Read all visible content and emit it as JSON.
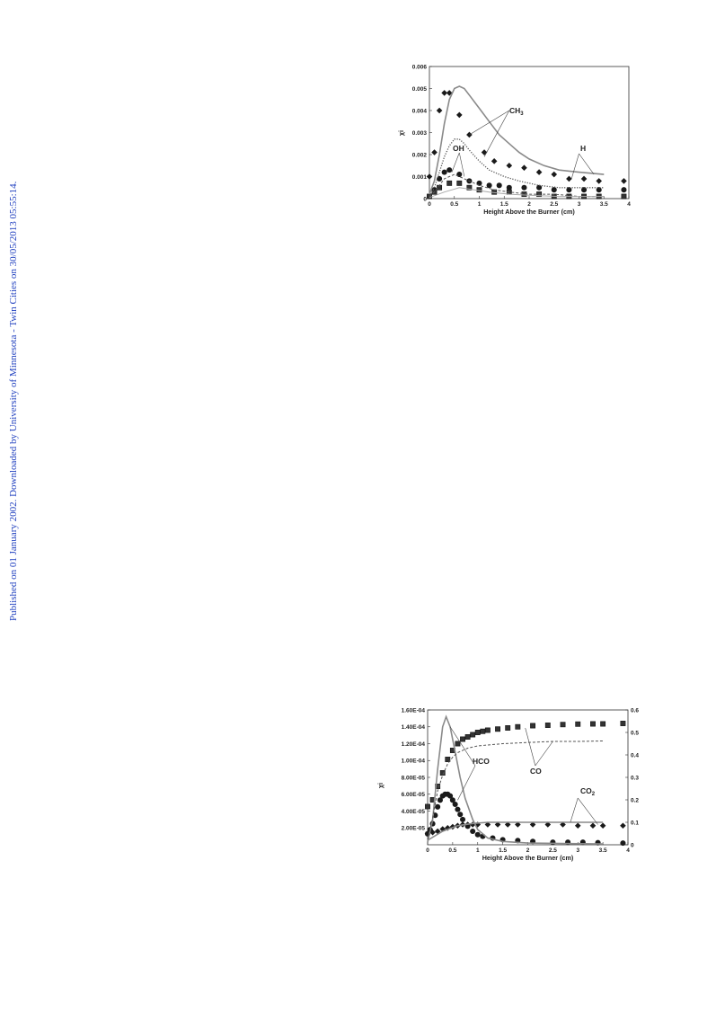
{
  "side_note": "Published on 01 January 2002. Downloaded by University of Minnesota - Twin Cities on 30/05/2013 05:55:14.",
  "chart_data": [
    {
      "type": "scatter",
      "xlabel": "Height Above the Burner (cm)",
      "ylabel": "χi",
      "xlim": [
        0,
        4
      ],
      "ylim": [
        0,
        0.006
      ],
      "x_ticks": [
        "0",
        "0.5",
        "1",
        "1.5",
        "2",
        "2.5",
        "3",
        "3.5",
        "4"
      ],
      "y_ticks": [
        "0",
        "0.001",
        "0.002",
        "0.003",
        "0.004",
        "0.005",
        "0.006"
      ],
      "annotations": [
        "CH3",
        "OH",
        "H"
      ],
      "series": [
        {
          "marker": "diamond",
          "points": [
            [
              0.0,
              0.001
            ],
            [
              0.1,
              0.0021
            ],
            [
              0.2,
              0.004
            ],
            [
              0.3,
              0.0048
            ],
            [
              0.4,
              0.0048
            ],
            [
              0.6,
              0.0038
            ],
            [
              0.8,
              0.0029
            ],
            [
              1.1,
              0.0021
            ],
            [
              1.3,
              0.0017
            ],
            [
              1.6,
              0.0015
            ],
            [
              1.9,
              0.0014
            ],
            [
              2.2,
              0.0012
            ],
            [
              2.5,
              0.0011
            ],
            [
              2.8,
              0.0009
            ],
            [
              3.1,
              0.0009
            ],
            [
              3.4,
              0.0008
            ],
            [
              3.9,
              0.0008
            ]
          ]
        },
        {
          "marker": "circle",
          "points": [
            [
              0.0,
              0.0001
            ],
            [
              0.1,
              0.0004
            ],
            [
              0.2,
              0.0009
            ],
            [
              0.3,
              0.0012
            ],
            [
              0.4,
              0.0013
            ],
            [
              0.6,
              0.0011
            ],
            [
              0.8,
              0.0008
            ],
            [
              1.0,
              0.0007
            ],
            [
              1.2,
              0.0006
            ],
            [
              1.4,
              0.0006
            ],
            [
              1.6,
              0.0005
            ],
            [
              1.9,
              0.0005
            ],
            [
              2.2,
              0.0005
            ],
            [
              2.5,
              0.0004
            ],
            [
              2.8,
              0.0004
            ],
            [
              3.1,
              0.0004
            ],
            [
              3.4,
              0.0004
            ],
            [
              3.9,
              0.0004
            ]
          ]
        },
        {
          "marker": "square",
          "points": [
            [
              0.0,
              0.0001
            ],
            [
              0.1,
              0.0003
            ],
            [
              0.2,
              0.0005
            ],
            [
              0.4,
              0.0007
            ],
            [
              0.6,
              0.0007
            ],
            [
              0.8,
              0.0005
            ],
            [
              1.0,
              0.0004
            ],
            [
              1.3,
              0.0003
            ],
            [
              1.6,
              0.0003
            ],
            [
              1.9,
              0.0002
            ],
            [
              2.2,
              0.0002
            ],
            [
              2.5,
              0.0001
            ],
            [
              2.8,
              0.0001
            ],
            [
              3.1,
              0.0001
            ],
            [
              3.4,
              0.0001
            ],
            [
              3.9,
              0.0001
            ]
          ]
        },
        {
          "line": "solid",
          "points": [
            [
              0.0,
              0.0002
            ],
            [
              0.1,
              0.0008
            ],
            [
              0.2,
              0.002
            ],
            [
              0.3,
              0.0034
            ],
            [
              0.4,
              0.0045
            ],
            [
              0.5,
              0.005
            ],
            [
              0.6,
              0.0051
            ],
            [
              0.7,
              0.005
            ],
            [
              0.8,
              0.0047
            ],
            [
              1.0,
              0.0041
            ],
            [
              1.2,
              0.0035
            ],
            [
              1.4,
              0.0029
            ],
            [
              1.6,
              0.0025
            ],
            [
              1.8,
              0.0021
            ],
            [
              2.0,
              0.0018
            ],
            [
              2.3,
              0.0015
            ],
            [
              2.6,
              0.0013
            ],
            [
              3.0,
              0.0012
            ],
            [
              3.5,
              0.0011
            ]
          ]
        },
        {
          "line": "dotted",
          "points": [
            [
              0.0,
              0.0001
            ],
            [
              0.1,
              0.0005
            ],
            [
              0.2,
              0.0012
            ],
            [
              0.3,
              0.0019
            ],
            [
              0.4,
              0.0024
            ],
            [
              0.5,
              0.0027
            ],
            [
              0.6,
              0.0027
            ],
            [
              0.7,
              0.0025
            ],
            [
              0.8,
              0.0022
            ],
            [
              1.0,
              0.0017
            ],
            [
              1.2,
              0.0013
            ],
            [
              1.5,
              0.001
            ],
            [
              1.8,
              0.0008
            ],
            [
              2.2,
              0.0006
            ],
            [
              2.6,
              0.0005
            ],
            [
              3.0,
              0.0005
            ],
            [
              3.5,
              0.0005
            ]
          ]
        },
        {
          "line": "dashed",
          "points": [
            [
              0.0,
              0.0001
            ],
            [
              0.1,
              0.0003
            ],
            [
              0.2,
              0.0006
            ],
            [
              0.3,
              0.0009
            ],
            [
              0.4,
              0.001
            ],
            [
              0.5,
              0.0011
            ],
            [
              0.6,
              0.001
            ],
            [
              0.8,
              0.0008
            ],
            [
              1.0,
              0.0006
            ],
            [
              1.3,
              0.0004
            ],
            [
              1.6,
              0.0003
            ],
            [
              2.0,
              0.0002
            ],
            [
              2.5,
              0.0002
            ],
            [
              3.0,
              0.0001
            ],
            [
              3.5,
              0.0001
            ]
          ]
        },
        {
          "line": "solid-light",
          "points": [
            [
              0.0,
              5e-05
            ],
            [
              0.3,
              0.0003
            ],
            [
              0.6,
              0.0005
            ],
            [
              0.9,
              0.0004
            ],
            [
              1.2,
              0.0003
            ],
            [
              1.6,
              0.0002
            ],
            [
              2.0,
              0.00015
            ],
            [
              2.6,
              0.0001
            ],
            [
              3.5,
              0.0001
            ]
          ]
        }
      ]
    },
    {
      "type": "scatter",
      "xlabel": "Height Above the Burner (cm)",
      "ylabel": "χi",
      "xlim": [
        0,
        4
      ],
      "ylim": [
        0,
        0.00016
      ],
      "y2lim": [
        0,
        0.6
      ],
      "x_ticks": [
        "0",
        "0.5",
        "1",
        "1.5",
        "2",
        "2.5",
        "3",
        "3.5",
        "4"
      ],
      "y_ticks": [
        "2.00E-05",
        "4.00E-05",
        "6.00E-05",
        "8.00E-05",
        "1.00E-04",
        "1.20E-04",
        "1.40E-04",
        "1.60E-04"
      ],
      "y2_ticks": [
        "0",
        "0.1",
        "0.2",
        "0.3",
        "0.4",
        "0.5",
        "0.6"
      ],
      "annotations": [
        "HCO",
        "CO",
        "CO2"
      ],
      "series": [
        {
          "marker": "square",
          "axis": "right",
          "points": [
            [
              0.0,
              0.17
            ],
            [
              0.1,
              0.2
            ],
            [
              0.2,
              0.26
            ],
            [
              0.3,
              0.32
            ],
            [
              0.4,
              0.38
            ],
            [
              0.5,
              0.42
            ],
            [
              0.6,
              0.45
            ],
            [
              0.7,
              0.47
            ],
            [
              0.8,
              0.48
            ],
            [
              0.9,
              0.49
            ],
            [
              1.0,
              0.5
            ],
            [
              1.1,
              0.505
            ],
            [
              1.2,
              0.51
            ],
            [
              1.4,
              0.515
            ],
            [
              1.6,
              0.52
            ],
            [
              1.8,
              0.525
            ],
            [
              2.1,
              0.53
            ],
            [
              2.4,
              0.532
            ],
            [
              2.7,
              0.535
            ],
            [
              3.0,
              0.537
            ],
            [
              3.3,
              0.538
            ],
            [
              3.5,
              0.538
            ],
            [
              3.9,
              0.54
            ]
          ]
        },
        {
          "marker": "circle",
          "axis": "left",
          "points": [
            [
              0.0,
              1.3e-05
            ],
            [
              0.05,
              1.8e-05
            ],
            [
              0.1,
              2.5e-05
            ],
            [
              0.15,
              3.5e-05
            ],
            [
              0.2,
              4.5e-05
            ],
            [
              0.25,
              5.3e-05
            ],
            [
              0.3,
              5.8e-05
            ],
            [
              0.35,
              6e-05
            ],
            [
              0.4,
              6e-05
            ],
            [
              0.45,
              5.8e-05
            ],
            [
              0.5,
              5.3e-05
            ],
            [
              0.55,
              4.8e-05
            ],
            [
              0.6,
              4.2e-05
            ],
            [
              0.65,
              3.6e-05
            ],
            [
              0.7,
              3e-05
            ],
            [
              0.8,
              2.2e-05
            ],
            [
              0.9,
              1.6e-05
            ],
            [
              1.0,
              1.2e-05
            ],
            [
              1.1,
              1e-05
            ],
            [
              1.3,
              8e-06
            ],
            [
              1.5,
              6e-06
            ],
            [
              1.8,
              5e-06
            ],
            [
              2.1,
              4e-06
            ],
            [
              2.5,
              3e-06
            ],
            [
              2.8,
              3e-06
            ],
            [
              3.1,
              3e-06
            ],
            [
              3.4,
              2.5e-06
            ],
            [
              3.9,
              2e-06
            ]
          ]
        },
        {
          "marker": "diamond",
          "axis": "right",
          "points": [
            [
              0.0,
              0.05
            ],
            [
              0.1,
              0.055
            ],
            [
              0.2,
              0.06
            ],
            [
              0.3,
              0.07
            ],
            [
              0.4,
              0.075
            ],
            [
              0.5,
              0.08
            ],
            [
              0.6,
              0.085
            ],
            [
              0.7,
              0.09
            ],
            [
              0.8,
              0.09
            ],
            [
              0.9,
              0.09
            ],
            [
              1.0,
              0.09
            ],
            [
              1.2,
              0.09
            ],
            [
              1.4,
              0.09
            ],
            [
              1.6,
              0.09
            ],
            [
              1.8,
              0.09
            ],
            [
              2.1,
              0.09
            ],
            [
              2.4,
              0.09
            ],
            [
              2.7,
              0.09
            ],
            [
              3.0,
              0.085
            ],
            [
              3.3,
              0.085
            ],
            [
              3.5,
              0.085
            ],
            [
              3.9,
              0.085
            ]
          ]
        },
        {
          "line": "solid",
          "axis": "left",
          "points": [
            [
              0.0,
              3e-06
            ],
            [
              0.1,
              3e-05
            ],
            [
              0.2,
              9e-05
            ],
            [
              0.3,
              0.00014
            ],
            [
              0.37,
              0.000152
            ],
            [
              0.45,
              0.00014
            ],
            [
              0.55,
              0.00011
            ],
            [
              0.65,
              8e-05
            ],
            [
              0.75,
              5.5e-05
            ],
            [
              0.9,
              3e-05
            ],
            [
              1.0,
              1.8e-05
            ],
            [
              1.2,
              8e-06
            ],
            [
              1.5,
              4e-06
            ],
            [
              2.0,
              2e-06
            ],
            [
              3.5,
              1e-06
            ]
          ]
        },
        {
          "line": "dashed",
          "axis": "right",
          "points": [
            [
              0.0,
              0.02
            ],
            [
              0.1,
              0.12
            ],
            [
              0.2,
              0.24
            ],
            [
              0.3,
              0.31
            ],
            [
              0.4,
              0.36
            ],
            [
              0.5,
              0.39
            ],
            [
              0.6,
              0.41
            ],
            [
              0.8,
              0.43
            ],
            [
              1.0,
              0.44
            ],
            [
              1.5,
              0.45
            ],
            [
              2.0,
              0.455
            ],
            [
              2.5,
              0.46
            ],
            [
              3.0,
              0.46
            ],
            [
              3.5,
              0.462
            ]
          ]
        },
        {
          "line": "solid",
          "axis": "right",
          "points": [
            [
              0.0,
              0.02
            ],
            [
              0.3,
              0.06
            ],
            [
              0.6,
              0.085
            ],
            [
              0.9,
              0.095
            ],
            [
              1.2,
              0.1
            ],
            [
              1.5,
              0.1
            ],
            [
              2.0,
              0.1
            ],
            [
              2.5,
              0.1
            ],
            [
              3.0,
              0.1
            ],
            [
              3.5,
              0.1
            ]
          ]
        }
      ]
    }
  ]
}
